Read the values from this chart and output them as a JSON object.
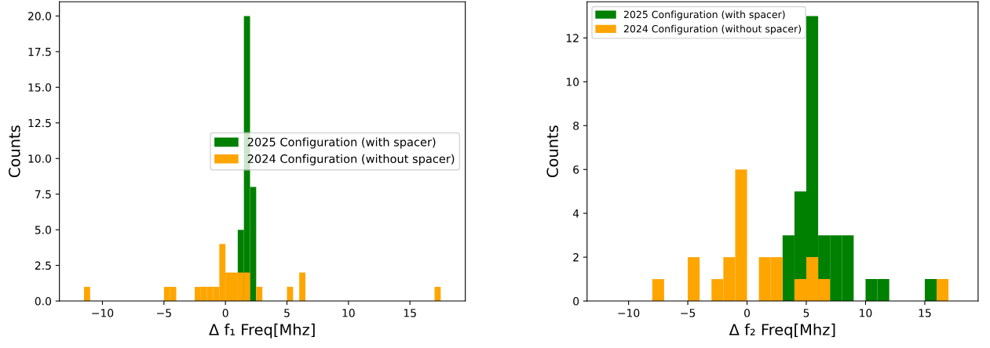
{
  "chart_data": [
    {
      "type": "histogram",
      "xlabel": "Δ f₁ Freq[Mhz]",
      "ylabel": "Counts",
      "xlim": [
        -13.5,
        19.5
      ],
      "ylim": [
        0,
        21
      ],
      "xticks": [
        -10,
        -5,
        0,
        5,
        10,
        15
      ],
      "yticks": [
        {
          "value": 0,
          "label": "0.0"
        },
        {
          "value": 2.5,
          "label": "2.5"
        },
        {
          "value": 5,
          "label": "5.0"
        },
        {
          "value": 7.5,
          "label": "7.5"
        },
        {
          "value": 10,
          "label": "10.0"
        },
        {
          "value": 12.5,
          "label": "12.5"
        },
        {
          "value": 15,
          "label": "15.0"
        },
        {
          "value": 17.5,
          "label": "17.5"
        },
        {
          "value": 20,
          "label": "20.0"
        }
      ],
      "grid": false,
      "legend": "right",
      "bins": [
        -11.5,
        -11.0,
        -10.5,
        -10.0,
        -9.5,
        -9.0,
        -8.5,
        -8.0,
        -7.5,
        -7.0,
        -6.5,
        -6.0,
        -5.5,
        -5.0,
        -4.5,
        -4.0,
        -3.5,
        -3.0,
        -2.5,
        -2.0,
        -1.5,
        -1.0,
        -0.5,
        0.0,
        0.5,
        1.0,
        1.5,
        2.0,
        2.5,
        3.0,
        3.5,
        4.0,
        4.5,
        5.0,
        5.5,
        6.0,
        6.5,
        7.0,
        7.5,
        8.0,
        8.5,
        9.0,
        9.5,
        10.0,
        10.5,
        11.0,
        11.5,
        12.0,
        12.5,
        13.0,
        13.5,
        14.0,
        14.5,
        15.0,
        15.5,
        16.0,
        16.5,
        17.0,
        17.5
      ],
      "series": [
        {
          "name": "2025 Configuration (with spacer)",
          "color": "#008000",
          "values": [
            0,
            0,
            0,
            0,
            0,
            0,
            0,
            0,
            0,
            0,
            0,
            0,
            0,
            0,
            0,
            0,
            0,
            0,
            0,
            0,
            0,
            0,
            0,
            0,
            0,
            5,
            20,
            8,
            0,
            0,
            0,
            0,
            0,
            0,
            0,
            0,
            0,
            0,
            0,
            0,
            0,
            0,
            0,
            0,
            0,
            0,
            0,
            0,
            0,
            0,
            0,
            0,
            0,
            0,
            0,
            0,
            0,
            0
          ]
        },
        {
          "name": "2024 Configuration (without spacer)",
          "color": "#ffa500",
          "values": [
            1,
            0,
            0,
            0,
            0,
            0,
            0,
            0,
            0,
            0,
            0,
            0,
            0,
            1,
            1,
            0,
            0,
            0,
            1,
            1,
            1,
            1,
            4,
            2,
            2,
            2,
            2,
            0,
            1,
            0,
            0,
            0,
            0,
            1,
            0,
            2,
            0,
            0,
            0,
            0,
            0,
            0,
            0,
            0,
            0,
            0,
            0,
            0,
            0,
            0,
            0,
            0,
            0,
            0,
            0,
            0,
            0,
            1
          ]
        }
      ]
    },
    {
      "type": "histogram",
      "xlabel": "Δ f₂ Freq[Mhz]",
      "ylabel": "Counts",
      "xlim": [
        -13.5,
        19.5
      ],
      "ylim": [
        0,
        13.65
      ],
      "xticks": [
        -10,
        -5,
        0,
        5,
        10,
        15
      ],
      "yticks": [
        0,
        2,
        4,
        6,
        8,
        10,
        12
      ],
      "grid": false,
      "legend": "top left",
      "bins": [
        -8,
        -7,
        -6,
        -5,
        -4,
        -3,
        -2,
        -1,
        0,
        1,
        2,
        3,
        4,
        5,
        6,
        7,
        8,
        9,
        10,
        11,
        12,
        13,
        14,
        15,
        16,
        17
      ],
      "series": [
        {
          "name": "2025 Configuration (with spacer)",
          "color": "#008000",
          "values": [
            0,
            0,
            0,
            0,
            0,
            0,
            0,
            0,
            0,
            0,
            0,
            3,
            5,
            13,
            3,
            3,
            3,
            0,
            1,
            1,
            0,
            0,
            0,
            1,
            0
          ]
        },
        {
          "name": "2024 Configuration (without spacer)",
          "color": "#ffa500",
          "values": [
            1,
            0,
            0,
            2,
            0,
            1,
            2,
            6,
            0,
            2,
            2,
            0,
            1,
            2,
            1,
            0,
            0,
            0,
            0,
            0,
            0,
            0,
            0,
            0,
            1
          ]
        }
      ]
    }
  ]
}
